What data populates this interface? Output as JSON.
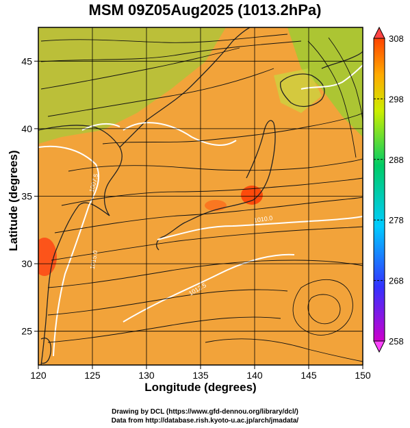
{
  "chart_data": {
    "type": "heatmap",
    "title": "MSM 09Z05Aug2025 (1013.2hPa)",
    "xlabel": "Longitude (degrees)",
    "ylabel": "Latitude (degrees)",
    "xlim": [
      120,
      150
    ],
    "ylim": [
      22.5,
      47.5
    ],
    "x_ticks": [
      120,
      125,
      130,
      135,
      140,
      145,
      150
    ],
    "y_ticks": [
      25,
      30,
      35,
      40,
      45
    ],
    "grid": true,
    "colorbar": {
      "min": 258,
      "max": 308,
      "ticks": [
        258,
        268,
        278,
        288,
        298,
        308
      ],
      "placement": "right",
      "colors": [
        "#cc00cc",
        "#3333ff",
        "#00ccff",
        "#00cc66",
        "#ccee00",
        "#ffaa00",
        "#ff4400"
      ]
    },
    "contour_color": "#ffffff",
    "contour_labels": [
      "1007.5",
      "1010.0",
      "1012.5",
      "1015.0"
    ],
    "streamline_color": "#000000",
    "fill_color": "#f5a623"
  },
  "credits": {
    "line1": "Drawing by DCL (https://www.gfd-dennou.org/library/dcl/)",
    "line2": "Data from http://database.rish.kyoto-u.ac.jp/arch/jmadata/"
  }
}
